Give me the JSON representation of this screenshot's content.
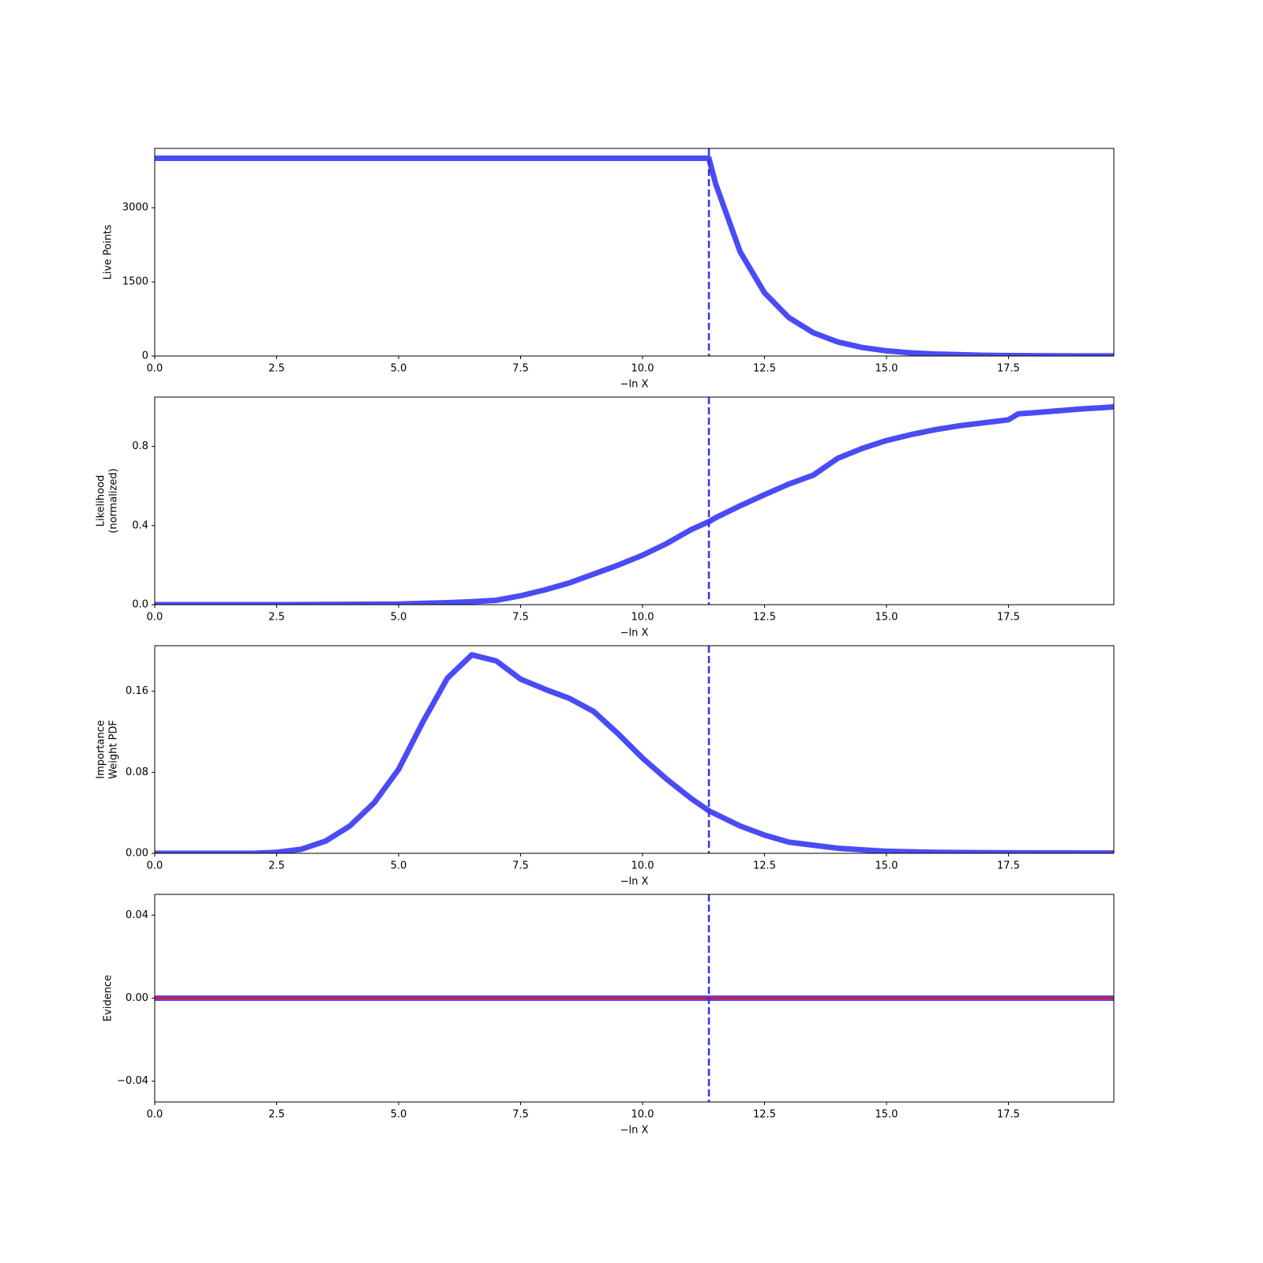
{
  "chart_data": [
    {
      "type": "line",
      "ylabel": [
        "Live Points"
      ],
      "xlabel": "−ln X",
      "x": [
        0,
        11.36,
        11.5,
        12,
        12.5,
        13,
        13.5,
        14,
        14.5,
        15,
        15.5,
        16,
        17,
        18,
        19,
        19.66
      ],
      "series": [
        {
          "color": "#4b4bf5",
          "values": [
            4000,
            4000,
            3478,
            2109,
            1279,
            776,
            471,
            285,
            173,
            105,
            64,
            39,
            14,
            5,
            2,
            1
          ]
        }
      ],
      "vline": 11.36,
      "vline_color": "#3333f0",
      "xlim": [
        0,
        19.66
      ],
      "xticks": [
        {
          "value": 0,
          "label": "0.0"
        },
        2.5,
        {
          "value": 5,
          "label": "5.0"
        },
        7.5,
        {
          "value": 10,
          "label": "10.0"
        },
        12.5,
        {
          "value": 15,
          "label": "15.0"
        },
        17.5
      ],
      "ylim": [
        0,
        4200
      ],
      "yticks": [
        0,
        1500,
        3000
      ]
    },
    {
      "type": "line",
      "ylabel": [
        "Likelihood",
        "(normalized)"
      ],
      "xlabel": "−ln X",
      "x": [
        0,
        2.5,
        5,
        6,
        6.5,
        7,
        7.5,
        8,
        8.5,
        9,
        9.5,
        10,
        10.5,
        11,
        11.36,
        11.5,
        12,
        12.5,
        13,
        13.5,
        14,
        14.5,
        15,
        15.5,
        16,
        16.5,
        17,
        17.5,
        17.7,
        18,
        18.5,
        19,
        19.66
      ],
      "series": [
        {
          "color": "#4b4bf5",
          "values": [
            0,
            0,
            0.003,
            0.01,
            0.015,
            0.022,
            0.045,
            0.075,
            0.11,
            0.155,
            0.2,
            0.25,
            0.31,
            0.38,
            0.42,
            0.44,
            0.5,
            0.556,
            0.61,
            0.655,
            0.74,
            0.79,
            0.83,
            0.86,
            0.885,
            0.905,
            0.92,
            0.935,
            0.965,
            0.97,
            0.98,
            0.99,
            1.0
          ]
        }
      ],
      "vline": 11.36,
      "vline_color": "#3333f0",
      "xlim": [
        0,
        19.66
      ],
      "xticks": [
        {
          "value": 0,
          "label": "0.0"
        },
        2.5,
        {
          "value": 5,
          "label": "5.0"
        },
        7.5,
        {
          "value": 10,
          "label": "10.0"
        },
        12.5,
        {
          "value": 15,
          "label": "15.0"
        },
        17.5
      ],
      "ylim": [
        0,
        1.05
      ],
      "yticks": [
        {
          "value": 0,
          "label": "0.0"
        },
        0.4,
        0.8
      ]
    },
    {
      "type": "line",
      "ylabel": [
        "Importance",
        "Weight PDF"
      ],
      "xlabel": "−ln X",
      "x": [
        0,
        2,
        2.5,
        3,
        3.5,
        4,
        4.5,
        5,
        5.5,
        6,
        6.5,
        7,
        7.5,
        8,
        8.5,
        9,
        9.5,
        10,
        10.5,
        11,
        11.36,
        12,
        12.5,
        13,
        14,
        15,
        16,
        17.5,
        19.66
      ],
      "series": [
        {
          "color": "#4b4bf5",
          "values": [
            0,
            0,
            0.001,
            0.004,
            0.012,
            0.027,
            0.05,
            0.083,
            0.13,
            0.173,
            0.196,
            0.19,
            0.172,
            0.162,
            0.153,
            0.14,
            0.118,
            0.094,
            0.073,
            0.054,
            0.042,
            0.027,
            0.018,
            0.011,
            0.005,
            0.002,
            0.001,
            0.0005,
            0.0003
          ]
        }
      ],
      "vline": 11.36,
      "vline_color": "#3333f0",
      "xlim": [
        0,
        19.66
      ],
      "xticks": [
        {
          "value": 0,
          "label": "0.0"
        },
        2.5,
        {
          "value": 5,
          "label": "5.0"
        },
        7.5,
        {
          "value": 10,
          "label": "10.0"
        },
        12.5,
        {
          "value": 15,
          "label": "15.0"
        },
        17.5
      ],
      "ylim": [
        0,
        0.205
      ],
      "yticks": [
        {
          "value": 0,
          "label": "0.00"
        },
        0.08,
        0.16
      ]
    },
    {
      "type": "line",
      "ylabel": [
        "Evidence"
      ],
      "xlabel": "−ln X",
      "x": [
        0,
        19.66
      ],
      "series": [
        {
          "color": "#4b4bf5",
          "values": [
            0,
            0
          ]
        },
        {
          "color": "#e8112d",
          "values": [
            0,
            0
          ]
        }
      ],
      "vline": 11.36,
      "vline_color": "#3333f0",
      "xlim": [
        0,
        19.66
      ],
      "xticks": [
        {
          "value": 0,
          "label": "0.0"
        },
        2.5,
        {
          "value": 5,
          "label": "5.0"
        },
        7.5,
        {
          "value": 10,
          "label": "10.0"
        },
        12.5,
        {
          "value": 15,
          "label": "15.0"
        },
        17.5
      ],
      "ylim": [
        -0.05,
        0.05
      ],
      "yticks": [
        {
          "value": -0.04,
          "label": "−0.04"
        },
        {
          "value": 0,
          "label": "0.00"
        },
        0.04
      ]
    }
  ]
}
